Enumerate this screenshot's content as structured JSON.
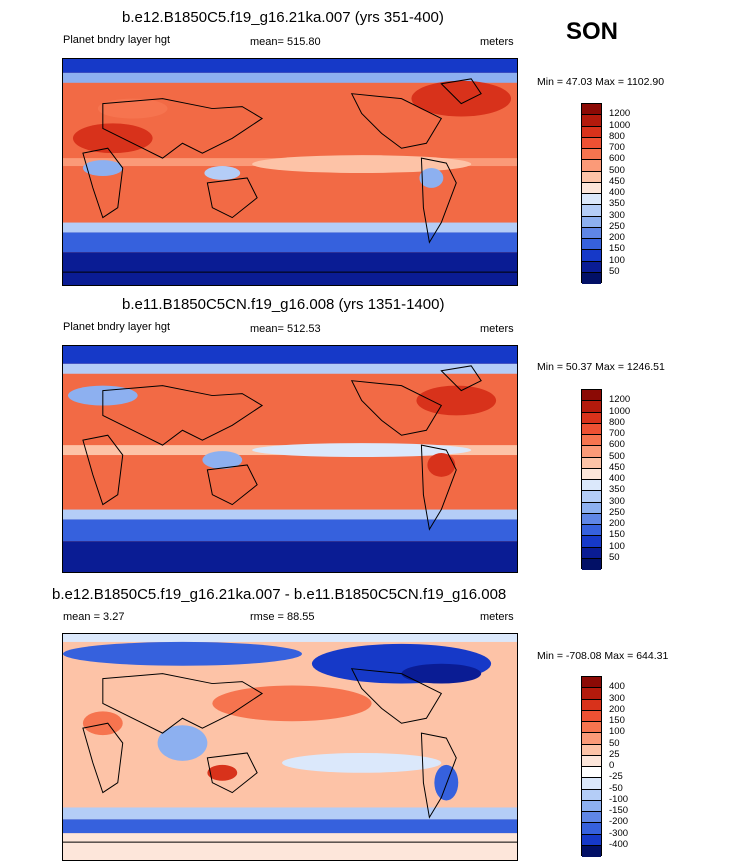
{
  "season": "SON",
  "panels": [
    {
      "title": "b.e12.B1850C5.f19_g16.21ka.007 (yrs 351-400)",
      "left_text": "Planet bndry layer hgt",
      "center_text": "mean= 515.80",
      "units": "meters",
      "minmax": "Min =  47.03 Max = 1102.90",
      "levels": [
        "1200",
        "1000",
        "800",
        "700",
        "600",
        "500",
        "450",
        "400",
        "350",
        "300",
        "250",
        "200",
        "150",
        "100",
        "50"
      ],
      "colors": [
        "#8b0a05",
        "#b31a0c",
        "#d8321b",
        "#ee5133",
        "#f6744f",
        "#fb9a78",
        "#fdc3a7",
        "#fde6da",
        "#dbe8fb",
        "#b4cdf7",
        "#8db0f0",
        "#5f86e6",
        "#3661dd",
        "#1639c8",
        "#0a1c94",
        "#021066"
      ]
    },
    {
      "title": "b.e11.B1850C5CN.f19_g16.008 (yrs 1351-1400)",
      "left_text": "Planet bndry layer hgt",
      "center_text": "mean= 512.53",
      "units": "meters",
      "minmax": "Min =  50.37 Max = 1246.51",
      "levels": [
        "1200",
        "1000",
        "800",
        "700",
        "600",
        "500",
        "450",
        "400",
        "350",
        "300",
        "250",
        "200",
        "150",
        "100",
        "50"
      ],
      "colors": [
        "#8b0a05",
        "#b31a0c",
        "#d8321b",
        "#ee5133",
        "#f6744f",
        "#fb9a78",
        "#fdc3a7",
        "#fde6da",
        "#dbe8fb",
        "#b4cdf7",
        "#8db0f0",
        "#5f86e6",
        "#3661dd",
        "#1639c8",
        "#0a1c94",
        "#021066"
      ]
    },
    {
      "title": "b.e12.B1850C5.f19_g16.21ka.007 - b.e11.B1850C5CN.f19_g16.008",
      "left_text": "mean =   3.27",
      "center_text": "rmse =  88.55",
      "units": "meters",
      "minmax": "Min = -708.08 Max = 644.31",
      "levels": [
        "400",
        "300",
        "200",
        "150",
        "100",
        "50",
        "25",
        "0",
        "-25",
        "-50",
        "-100",
        "-150",
        "-200",
        "-300",
        "-400"
      ],
      "colors": [
        "#8b0a05",
        "#b31a0c",
        "#d8321b",
        "#ee5133",
        "#f6744f",
        "#fb9a78",
        "#fdc3a7",
        "#fde6da",
        "#ffffff",
        "#dbe8fb",
        "#b4cdf7",
        "#8db0f0",
        "#5f86e6",
        "#3661dd",
        "#1639c8",
        "#021066"
      ]
    }
  ]
}
